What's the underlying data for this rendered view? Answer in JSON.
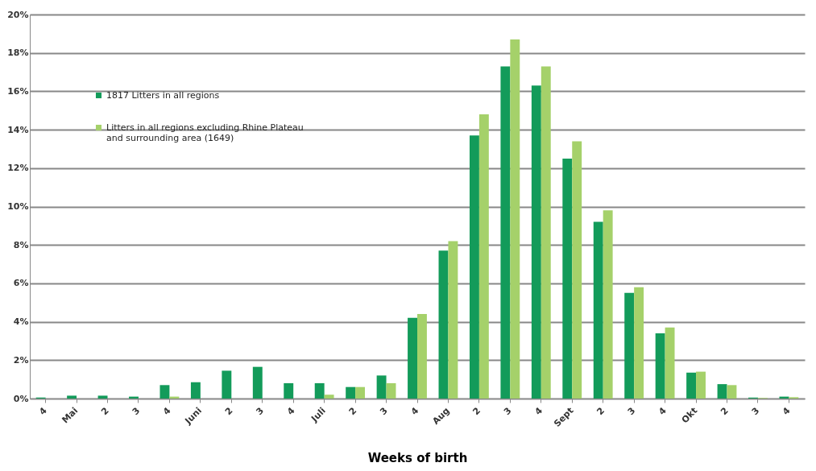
{
  "chart_data": {
    "type": "bar",
    "xlabel": "Weeks of birth",
    "categories": [
      "4",
      "Mai",
      "2",
      "3",
      "4",
      "Juni",
      "2",
      "3",
      "4",
      "Juli",
      "2",
      "3",
      "4",
      "Aug",
      "2",
      "3",
      "4",
      "Sept",
      "2",
      "3",
      "4",
      "Okt",
      "2",
      "3",
      "4"
    ],
    "series": [
      {
        "name": "1817 Litters in all regions",
        "color": "#139b5a",
        "values": [
          0.05,
          0.15,
          0.15,
          0.1,
          0.7,
          0.85,
          1.45,
          1.65,
          0.8,
          0.8,
          0.6,
          1.2,
          4.2,
          7.7,
          13.7,
          17.3,
          16.3,
          12.5,
          9.2,
          5.5,
          3.4,
          1.35,
          0.75,
          0.05,
          0.1
        ]
      },
      {
        "name": "Litters in all regions excluding Rhine Plateau and surrounding area (1649)",
        "color": "#a5d16a",
        "values": [
          0,
          0,
          0,
          0,
          0.1,
          0,
          0,
          0,
          0,
          0.2,
          0.6,
          0.8,
          4.4,
          8.2,
          14.8,
          18.7,
          17.3,
          13.4,
          9.8,
          5.8,
          3.7,
          1.4,
          0.7,
          0.03,
          0.07
        ]
      }
    ],
    "ylim": [
      0,
      20
    ],
    "yticks": [
      {
        "value": 0,
        "label": "0%"
      },
      {
        "value": 2,
        "label": "2%"
      },
      {
        "value": 4,
        "label": "4%"
      },
      {
        "value": 6,
        "label": "6%"
      },
      {
        "value": 8,
        "label": "8%"
      },
      {
        "value": 10,
        "label": "10%"
      },
      {
        "value": 12,
        "label": "12%"
      },
      {
        "value": 14,
        "label": "14%"
      },
      {
        "value": 16,
        "label": "16%"
      },
      {
        "value": 18,
        "label": "18%"
      },
      {
        "value": 20,
        "label": "20%"
      }
    ],
    "grid": "y",
    "legend": "top left"
  }
}
